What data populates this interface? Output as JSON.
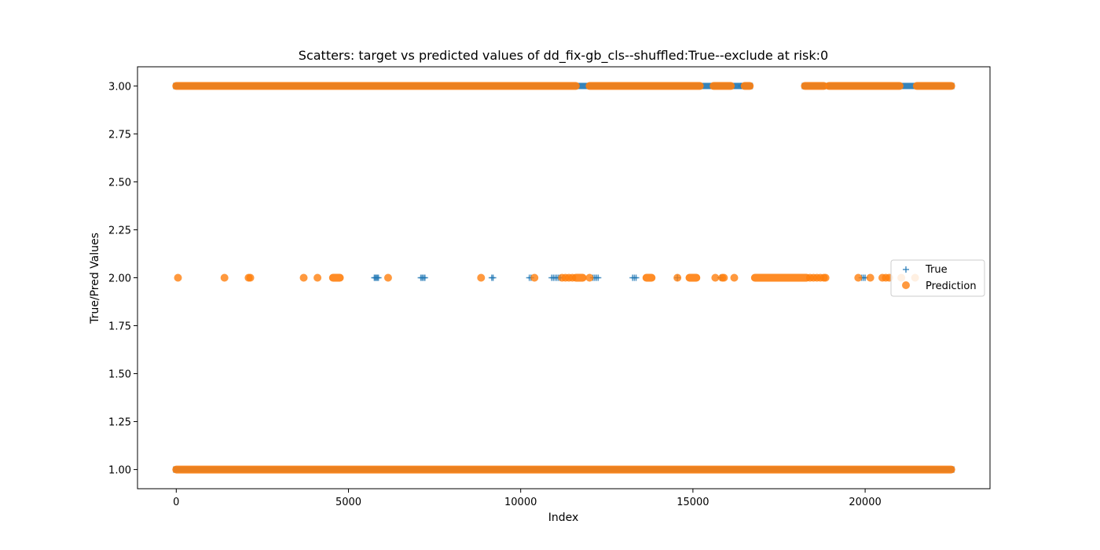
{
  "chart_data": {
    "type": "scatter",
    "title": "Scatters: target vs predicted values of dd_fix-gb_cls--shuffled:True--exclude at risk:0",
    "xlabel": "Index",
    "ylabel": "True/Pred Values",
    "xlim": [
      -1125,
      23625
    ],
    "ylim": [
      0.9,
      3.1
    ],
    "xticks": [
      0,
      5000,
      10000,
      15000,
      20000
    ],
    "xtick_labels": [
      "0",
      "5000",
      "10000",
      "15000",
      "20000"
    ],
    "yticks": [
      1.0,
      1.25,
      1.5,
      1.75,
      2.0,
      2.25,
      2.5,
      2.75,
      3.0
    ],
    "ytick_labels": [
      "1.00",
      "1.25",
      "1.50",
      "1.75",
      "2.00",
      "2.25",
      "2.50",
      "2.75",
      "3.00"
    ],
    "grid": false,
    "legend_position": "center-right",
    "series": [
      {
        "name": "True",
        "marker": "plus",
        "color": "#1f77b4",
        "segments": [
          {
            "y": 1,
            "x_start": 0,
            "x_end": 22500
          },
          {
            "y": 3,
            "x_start": 0,
            "x_end": 16650
          },
          {
            "y": 3,
            "x_start": 18250,
            "x_end": 22500
          }
        ],
        "points": [
          {
            "x": 5750,
            "y": 2
          },
          {
            "x": 5780,
            "y": 2
          },
          {
            "x": 5810,
            "y": 2
          },
          {
            "x": 5840,
            "y": 2
          },
          {
            "x": 5870,
            "y": 2
          },
          {
            "x": 7100,
            "y": 2
          },
          {
            "x": 7140,
            "y": 2
          },
          {
            "x": 7180,
            "y": 2
          },
          {
            "x": 7220,
            "y": 2
          },
          {
            "x": 9160,
            "y": 2
          },
          {
            "x": 9200,
            "y": 2
          },
          {
            "x": 10250,
            "y": 2
          },
          {
            "x": 10300,
            "y": 2
          },
          {
            "x": 10900,
            "y": 2
          },
          {
            "x": 10950,
            "y": 2
          },
          {
            "x": 11000,
            "y": 2
          },
          {
            "x": 11050,
            "y": 2
          },
          {
            "x": 11100,
            "y": 2
          },
          {
            "x": 11150,
            "y": 2
          },
          {
            "x": 12100,
            "y": 2
          },
          {
            "x": 12150,
            "y": 2
          },
          {
            "x": 12200,
            "y": 2
          },
          {
            "x": 12250,
            "y": 2
          },
          {
            "x": 13250,
            "y": 2
          },
          {
            "x": 13300,
            "y": 2
          },
          {
            "x": 13350,
            "y": 2
          },
          {
            "x": 14550,
            "y": 2
          },
          {
            "x": 15800,
            "y": 2
          },
          {
            "x": 16400,
            "y": 3
          },
          {
            "x": 18900,
            "y": 3
          },
          {
            "x": 19900,
            "y": 2
          },
          {
            "x": 19950,
            "y": 2
          },
          {
            "x": 20000,
            "y": 2
          }
        ]
      },
      {
        "name": "Prediction",
        "marker": "circle",
        "color": "#ff7f0e",
        "segments": [
          {
            "y": 1,
            "x_start": 0,
            "x_end": 22500
          },
          {
            "y": 3,
            "x_start": 0,
            "x_end": 11600
          },
          {
            "y": 3,
            "x_start": 12000,
            "x_end": 15200
          },
          {
            "y": 3,
            "x_start": 15600,
            "x_end": 16100
          },
          {
            "y": 3,
            "x_start": 16500,
            "x_end": 16650
          },
          {
            "y": 3,
            "x_start": 18250,
            "x_end": 18800
          },
          {
            "y": 3,
            "x_start": 18950,
            "x_end": 21000
          },
          {
            "y": 3,
            "x_start": 21500,
            "x_end": 22500
          },
          {
            "y": 2,
            "x_start": 16800,
            "x_end": 18300
          },
          {
            "y": 2,
            "x_start": 13650,
            "x_end": 13800
          },
          {
            "y": 2,
            "x_start": 14900,
            "x_end": 15100
          },
          {
            "y": 2,
            "x_start": 11600,
            "x_end": 11800
          },
          {
            "y": 2,
            "x_start": 4550,
            "x_end": 4750
          }
        ],
        "points": [
          {
            "x": 50,
            "y": 2
          },
          {
            "x": 1400,
            "y": 2
          },
          {
            "x": 2100,
            "y": 2
          },
          {
            "x": 2150,
            "y": 2
          },
          {
            "x": 3700,
            "y": 2
          },
          {
            "x": 4100,
            "y": 2
          },
          {
            "x": 6150,
            "y": 2
          },
          {
            "x": 8850,
            "y": 2
          },
          {
            "x": 10400,
            "y": 2
          },
          {
            "x": 11200,
            "y": 2
          },
          {
            "x": 11300,
            "y": 2
          },
          {
            "x": 11400,
            "y": 2
          },
          {
            "x": 11500,
            "y": 2
          },
          {
            "x": 12000,
            "y": 2
          },
          {
            "x": 14550,
            "y": 2
          },
          {
            "x": 15650,
            "y": 2
          },
          {
            "x": 15850,
            "y": 2
          },
          {
            "x": 15900,
            "y": 2
          },
          {
            "x": 16200,
            "y": 2
          },
          {
            "x": 18400,
            "y": 2
          },
          {
            "x": 18500,
            "y": 2
          },
          {
            "x": 18600,
            "y": 2
          },
          {
            "x": 18700,
            "y": 2
          },
          {
            "x": 18800,
            "y": 2
          },
          {
            "x": 18850,
            "y": 2
          },
          {
            "x": 19800,
            "y": 2
          },
          {
            "x": 20150,
            "y": 2
          },
          {
            "x": 20500,
            "y": 2
          },
          {
            "x": 20600,
            "y": 2
          },
          {
            "x": 20700,
            "y": 2
          },
          {
            "x": 21050,
            "y": 2
          },
          {
            "x": 21450,
            "y": 2
          }
        ]
      }
    ]
  }
}
